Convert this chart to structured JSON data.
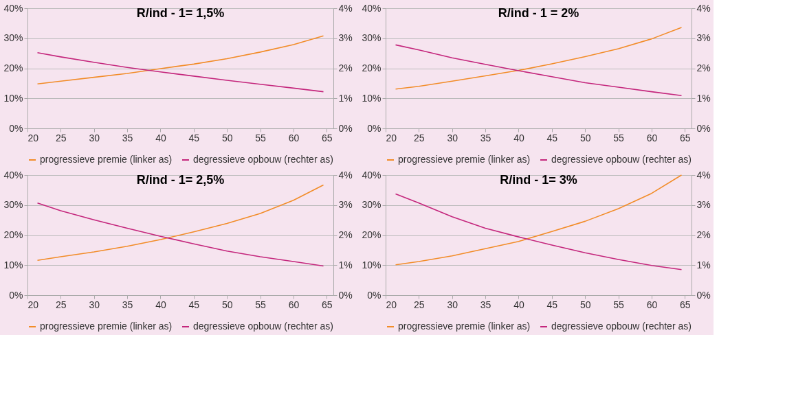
{
  "chart_data": [
    {
      "type": "line",
      "title": "R/ind - 1= 1,5%",
      "x": [
        21.5,
        25,
        30,
        35,
        40,
        45,
        50,
        55,
        60,
        64.5
      ],
      "xlim": [
        20,
        66
      ],
      "xticks": [
        20,
        25,
        30,
        35,
        40,
        45,
        50,
        55,
        60,
        65
      ],
      "ylim": [
        0,
        40
      ],
      "yticks": [
        {
          "value": 0,
          "label": "0%"
        },
        {
          "value": 10,
          "label": "10%"
        },
        {
          "value": 20,
          "label": "20%"
        },
        {
          "value": 30,
          "label": "30%"
        },
        {
          "value": 40,
          "label": "40%"
        }
      ],
      "y2lim": [
        0,
        4
      ],
      "y2ticks": [
        {
          "value": 0,
          "label": "0%"
        },
        {
          "value": 1,
          "label": "1%"
        },
        {
          "value": 2,
          "label": "2%"
        },
        {
          "value": 3,
          "label": "3%"
        },
        {
          "value": 4,
          "label": "4%"
        }
      ],
      "grid": "y",
      "legend": "bottom",
      "series": [
        {
          "name": "progressieve premie (linker as)",
          "color": "#f28c28",
          "values": [
            14.8,
            15.7,
            17.0,
            18.3,
            19.9,
            21.4,
            23.2,
            25.4,
            27.9,
            30.8
          ]
        },
        {
          "name": "degressieve opbouw (rechter as)",
          "color": "#c4267c",
          "axis": "y2",
          "values": [
            2.52,
            2.38,
            2.2,
            2.03,
            1.88,
            1.74,
            1.6,
            1.47,
            1.34,
            1.22
          ]
        }
      ]
    },
    {
      "type": "line",
      "title": "R/ind - 1 = 2%",
      "x": [
        21.5,
        25,
        30,
        35,
        40,
        45,
        50,
        55,
        60,
        64.5
      ],
      "xlim": [
        20,
        66
      ],
      "xticks": [
        20,
        25,
        30,
        35,
        40,
        45,
        50,
        55,
        60,
        65
      ],
      "ylim": [
        0,
        40
      ],
      "yticks": [
        {
          "value": 0,
          "label": "0%"
        },
        {
          "value": 10,
          "label": "10%"
        },
        {
          "value": 20,
          "label": "20%"
        },
        {
          "value": 30,
          "label": "30%"
        },
        {
          "value": 40,
          "label": "40%"
        }
      ],
      "y2lim": [
        0,
        4
      ],
      "y2ticks": [
        {
          "value": 0,
          "label": "0%"
        },
        {
          "value": 1,
          "label": "1%"
        },
        {
          "value": 2,
          "label": "2%"
        },
        {
          "value": 3,
          "label": "3%"
        },
        {
          "value": 4,
          "label": "4%"
        }
      ],
      "grid": "y",
      "legend": "bottom",
      "series": [
        {
          "name": "progressieve premie (linker as)",
          "color": "#f28c28",
          "values": [
            13.1,
            14.0,
            15.7,
            17.5,
            19.3,
            21.5,
            23.9,
            26.5,
            29.8,
            33.6
          ]
        },
        {
          "name": "degressieve opbouw (rechter as)",
          "color": "#c4267c",
          "axis": "y2",
          "values": [
            2.78,
            2.61,
            2.35,
            2.13,
            1.92,
            1.72,
            1.52,
            1.37,
            1.22,
            1.09
          ]
        }
      ]
    },
    {
      "type": "line",
      "title": "R/ind - 1= 2,5%",
      "x": [
        21.5,
        25,
        30,
        35,
        40,
        45,
        50,
        55,
        60,
        64.5
      ],
      "xlim": [
        20,
        66
      ],
      "xticks": [
        20,
        25,
        30,
        35,
        40,
        45,
        50,
        55,
        60,
        65
      ],
      "ylim": [
        0,
        40
      ],
      "yticks": [
        {
          "value": 0,
          "label": "0%"
        },
        {
          "value": 10,
          "label": "10%"
        },
        {
          "value": 20,
          "label": "20%"
        },
        {
          "value": 30,
          "label": "30%"
        },
        {
          "value": 40,
          "label": "40%"
        }
      ],
      "y2lim": [
        0,
        4
      ],
      "y2ticks": [
        {
          "value": 0,
          "label": "0%"
        },
        {
          "value": 1,
          "label": "1%"
        },
        {
          "value": 2,
          "label": "2%"
        },
        {
          "value": 3,
          "label": "3%"
        },
        {
          "value": 4,
          "label": "4%"
        }
      ],
      "grid": "y",
      "legend": "bottom",
      "series": [
        {
          "name": "progressieve premie (linker as)",
          "color": "#f28c28",
          "values": [
            11.6,
            12.8,
            14.4,
            16.3,
            18.5,
            21.1,
            23.9,
            27.2,
            31.6,
            36.7
          ]
        },
        {
          "name": "degressieve opbouw (rechter as)",
          "color": "#c4267c",
          "axis": "y2",
          "values": [
            3.07,
            2.81,
            2.51,
            2.23,
            1.96,
            1.71,
            1.47,
            1.28,
            1.12,
            0.97
          ]
        }
      ]
    },
    {
      "type": "line",
      "title": "R/ind - 1= 3%",
      "x": [
        21.5,
        25,
        30,
        35,
        40,
        45,
        50,
        55,
        60,
        64.5
      ],
      "xlim": [
        20,
        66
      ],
      "xticks": [
        20,
        25,
        30,
        35,
        40,
        45,
        50,
        55,
        60,
        65
      ],
      "ylim": [
        0,
        40
      ],
      "yticks": [
        {
          "value": 0,
          "label": "0%"
        },
        {
          "value": 10,
          "label": "10%"
        },
        {
          "value": 20,
          "label": "20%"
        },
        {
          "value": 30,
          "label": "30%"
        },
        {
          "value": 40,
          "label": "40%"
        }
      ],
      "y2lim": [
        0,
        4
      ],
      "y2ticks": [
        {
          "value": 0,
          "label": "0%"
        },
        {
          "value": 1,
          "label": "1%"
        },
        {
          "value": 2,
          "label": "2%"
        },
        {
          "value": 3,
          "label": "3%"
        },
        {
          "value": 4,
          "label": "4%"
        }
      ],
      "grid": "y",
      "legend": "bottom",
      "series": [
        {
          "name": "progressieve premie (linker as)",
          "color": "#f28c28",
          "values": [
            10.1,
            11.2,
            13.1,
            15.5,
            17.9,
            21.2,
            24.6,
            28.8,
            33.9,
            40.0
          ]
        },
        {
          "name": "degressieve opbouw (rechter as)",
          "color": "#c4267c",
          "axis": "y2",
          "values": [
            3.37,
            3.07,
            2.61,
            2.23,
            1.94,
            1.67,
            1.41,
            1.19,
            0.99,
            0.85
          ]
        }
      ]
    }
  ]
}
